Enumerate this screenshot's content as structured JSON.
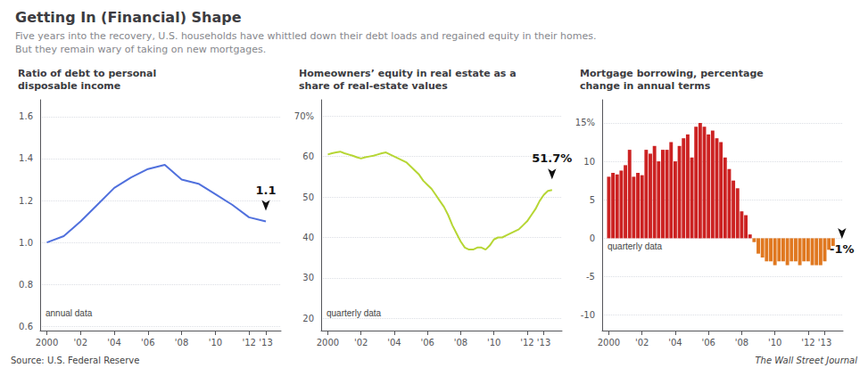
{
  "title": "Getting In (Financial) Shape",
  "subtitle": [
    "Five years into the recovery, U.S. households have whittled down their debt loads and regained equity in their homes.",
    "But they remain wary of taking on new mortgages."
  ],
  "source": "Source: U.S. Federal Reserve",
  "credit": "The Wall Street Journal",
  "chart_data": [
    {
      "type": "line",
      "title": "Ratio of debt to personal\ndisposable income",
      "note": "annual data",
      "x": [
        2000,
        2001,
        2002,
        2003,
        2004,
        2005,
        2006,
        2007,
        2008,
        2009,
        2010,
        2011,
        2012,
        2013
      ],
      "values": [
        1.0,
        1.03,
        1.1,
        1.18,
        1.26,
        1.31,
        1.35,
        1.37,
        1.3,
        1.28,
        1.23,
        1.18,
        1.12,
        1.1
      ],
      "xlim": [
        1999.6,
        2013.9
      ],
      "xticks": [
        2000,
        {
          "value": 2002,
          "label": "'02"
        },
        {
          "value": 2004,
          "label": "'04"
        },
        {
          "value": 2006,
          "label": "'06"
        },
        {
          "value": 2008,
          "label": "'08"
        },
        {
          "value": 2010,
          "label": "'10"
        },
        {
          "value": 2012,
          "label": "'12"
        },
        {
          "value": 2013,
          "label": "'13"
        }
      ],
      "ylim": [
        0.58,
        1.68
      ],
      "yticks": [
        0.6,
        0.8,
        {
          "value": 1.0,
          "label": "1.0"
        },
        1.2,
        1.4,
        1.6
      ],
      "grid": true,
      "annotations": [
        {
          "text": "1.1",
          "x": 2013,
          "y": 1.1
        }
      ]
    },
    {
      "type": "line",
      "title": "Homeowners’ equity in real estate as a\nshare of real-estate values",
      "note": "quarterly data",
      "x": [
        2000.0,
        2000.25,
        2000.5,
        2000.75,
        2001.0,
        2001.25,
        2001.5,
        2001.75,
        2002.0,
        2002.25,
        2002.5,
        2002.75,
        2003.0,
        2003.25,
        2003.5,
        2003.75,
        2004.0,
        2004.25,
        2004.5,
        2004.75,
        2005.0,
        2005.25,
        2005.5,
        2005.75,
        2006.0,
        2006.25,
        2006.5,
        2006.75,
        2007.0,
        2007.25,
        2007.5,
        2007.75,
        2008.0,
        2008.25,
        2008.5,
        2008.75,
        2009.0,
        2009.25,
        2009.5,
        2009.75,
        2010.0,
        2010.25,
        2010.5,
        2010.75,
        2011.0,
        2011.25,
        2011.5,
        2011.75,
        2012.0,
        2012.25,
        2012.5,
        2012.75,
        2013.0,
        2013.25,
        2013.5
      ],
      "values": [
        60.5,
        60.8,
        61.0,
        61.2,
        60.8,
        60.5,
        60.2,
        59.8,
        59.5,
        59.8,
        60.0,
        60.2,
        60.5,
        60.8,
        61.0,
        60.5,
        60.0,
        59.5,
        59.0,
        58.5,
        57.5,
        56.5,
        55.5,
        54.0,
        53.0,
        52.0,
        50.5,
        49.0,
        47.5,
        45.5,
        43.0,
        41.0,
        39.0,
        37.5,
        37.0,
        37.0,
        37.5,
        37.5,
        37.0,
        38.0,
        39.5,
        40.0,
        40.0,
        40.5,
        41.0,
        41.5,
        42.0,
        43.0,
        44.0,
        45.5,
        47.0,
        49.0,
        50.5,
        51.5,
        51.7
      ],
      "xlim": [
        1999.6,
        2014.1
      ],
      "xticks": [
        2000,
        {
          "value": 2002,
          "label": "'02"
        },
        {
          "value": 2004,
          "label": "'04"
        },
        {
          "value": 2006,
          "label": "'06"
        },
        {
          "value": 2008,
          "label": "'08"
        },
        {
          "value": 2010,
          "label": "'10"
        },
        {
          "value": 2012,
          "label": "'12"
        },
        {
          "value": 2013,
          "label": "'13"
        }
      ],
      "ylim": [
        17,
        74
      ],
      "yticks": [
        20,
        30,
        40,
        50,
        60,
        {
          "value": 70,
          "label": "70%"
        }
      ],
      "grid": true,
      "annotations": [
        {
          "text": "51.7%",
          "x": 2013.5,
          "y": 51.7
        }
      ]
    },
    {
      "type": "bar",
      "title": "Mortgage borrowing, percentage\nchange in annual terms",
      "note": "quarterly data",
      "x": [
        2000.0,
        2000.25,
        2000.5,
        2000.75,
        2001.0,
        2001.25,
        2001.5,
        2001.75,
        2002.0,
        2002.25,
        2002.5,
        2002.75,
        2003.0,
        2003.25,
        2003.5,
        2003.75,
        2004.0,
        2004.25,
        2004.5,
        2004.75,
        2005.0,
        2005.25,
        2005.5,
        2005.75,
        2006.0,
        2006.25,
        2006.5,
        2006.75,
        2007.0,
        2007.25,
        2007.5,
        2007.75,
        2008.0,
        2008.25,
        2008.5,
        2008.75,
        2009.0,
        2009.25,
        2009.5,
        2009.75,
        2010.0,
        2010.25,
        2010.5,
        2010.75,
        2011.0,
        2011.25,
        2011.5,
        2011.75,
        2012.0,
        2012.25,
        2012.5,
        2012.75,
        2013.0,
        2013.25,
        2013.5
      ],
      "values": [
        8.0,
        8.5,
        8.3,
        8.8,
        9.5,
        11.5,
        8.0,
        8.5,
        8.2,
        11.5,
        11.0,
        12.0,
        10.0,
        11.5,
        11.5,
        12.5,
        10.0,
        12.0,
        13.0,
        13.5,
        10.5,
        14.5,
        15.0,
        14.5,
        13.5,
        14.0,
        13.0,
        12.5,
        10.5,
        9.0,
        7.5,
        6.5,
        3.5,
        3.0,
        0.5,
        -0.5,
        -2.0,
        -2.5,
        -3.0,
        -3.0,
        -3.5,
        -3.0,
        -3.0,
        -3.5,
        -3.0,
        -3.0,
        -3.5,
        -3.0,
        -3.0,
        -3.5,
        -3.5,
        -3.5,
        -3.0,
        -1.5,
        -1.0
      ],
      "colors": [
        "#cc2222",
        "#cc2222",
        "#cc2222",
        "#cc2222",
        "#cc2222",
        "#cc2222",
        "#cc2222",
        "#cc2222",
        "#cc2222",
        "#cc2222",
        "#cc2222",
        "#cc2222",
        "#cc2222",
        "#cc2222",
        "#cc2222",
        "#cc2222",
        "#cc2222",
        "#cc2222",
        "#cc2222",
        "#cc2222",
        "#cc2222",
        "#cc2222",
        "#cc2222",
        "#cc2222",
        "#cc2222",
        "#cc2222",
        "#cc2222",
        "#cc2222",
        "#cc2222",
        "#cc2222",
        "#cc2222",
        "#cc2222",
        "#cc2222",
        "#cc2222",
        "#cc2222",
        "#e07820",
        "#e07820",
        "#e07820",
        "#e07820",
        "#e07820",
        "#e07820",
        "#e07820",
        "#e07820",
        "#e07820",
        "#e07820",
        "#e07820",
        "#e07820",
        "#e07820",
        "#e07820",
        "#e07820",
        "#e07820",
        "#e07820",
        "#e07820",
        "#e07820",
        "#e07820"
      ],
      "xlim": [
        1999.6,
        2014.1
      ],
      "xticks": [
        2000,
        {
          "value": 2002,
          "label": "'02"
        },
        {
          "value": 2004,
          "label": "'04"
        },
        {
          "value": 2006,
          "label": "'06"
        },
        {
          "value": 2008,
          "label": "'08"
        },
        {
          "value": 2010,
          "label": "'10"
        },
        {
          "value": 2012,
          "label": "'12"
        },
        {
          "value": 2013,
          "label": "'13"
        }
      ],
      "ylim": [
        -12,
        18
      ],
      "yticks": [
        -10,
        -5,
        0,
        5,
        10,
        {
          "value": 15,
          "label": "15%"
        }
      ],
      "grid": true,
      "annotations": [
        {
          "text": "-1%",
          "x": 2013.5,
          "y": -1.0
        }
      ]
    }
  ]
}
